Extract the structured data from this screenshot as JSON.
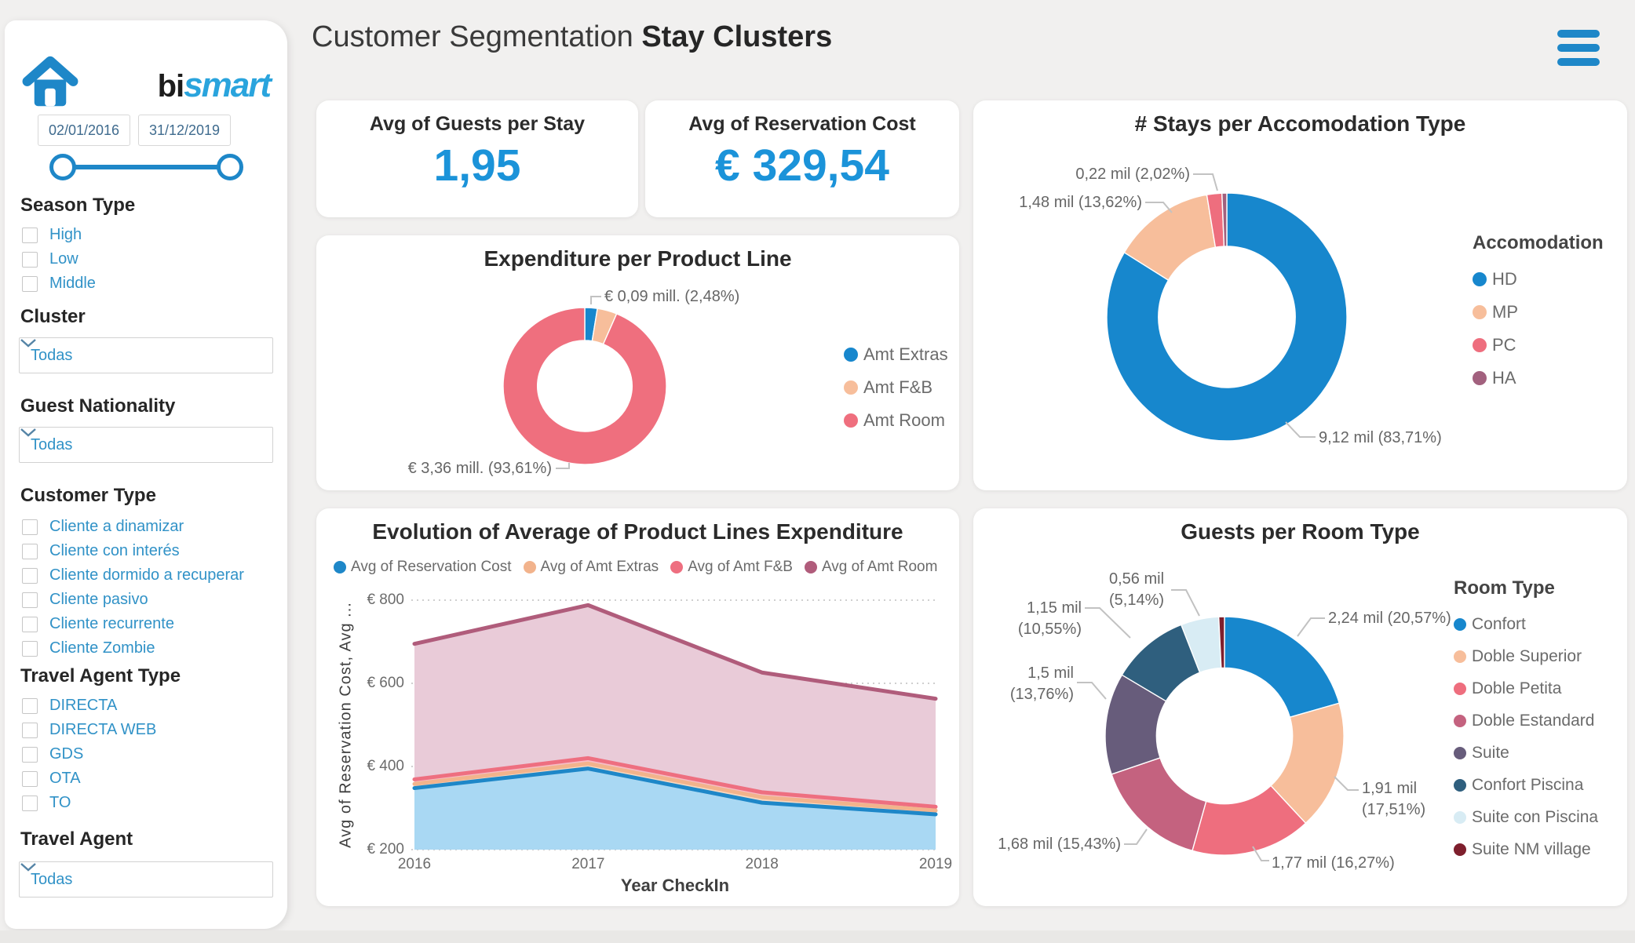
{
  "theme": {
    "accent_blue": "#1E87C8",
    "kpi_blue": "#1B93D9",
    "link_blue": "#3192C7",
    "text_dark": "#2B2B2B",
    "text_gray": "#6B6B6B",
    "leader_gray": "#C2C2C2",
    "page_bg": "#F1F0EF"
  },
  "sidebar": {
    "logo": {
      "bi": "bi",
      "smart": "smart"
    },
    "date_from": "02/01/2016",
    "date_to": "31/12/2019",
    "season_type": {
      "title": "Season Type",
      "options": [
        "High",
        "Low",
        "Middle"
      ]
    },
    "cluster": {
      "title": "Cluster",
      "value": "Todas"
    },
    "guest_nationality": {
      "title": "Guest Nationality",
      "value": "Todas"
    },
    "customer_type": {
      "title": "Customer Type",
      "options": [
        "Cliente a dinamizar",
        "Cliente con interés",
        "Cliente dormido a recuperar",
        "Cliente pasivo",
        "Cliente recurrente",
        "Cliente Zombie"
      ]
    },
    "travel_agent_type": {
      "title": "Travel Agent Type",
      "options": [
        "DIRECTA",
        "DIRECTA WEB",
        "GDS",
        "OTA",
        "TO"
      ]
    },
    "travel_agent": {
      "title": "Travel Agent",
      "value": "Todas"
    }
  },
  "header": {
    "title_regular": "Customer Segmentation",
    "title_bold": "Stay Clusters"
  },
  "kpis": [
    {
      "title": "Avg of Guests per Stay",
      "value": "1,95"
    },
    {
      "title": "Avg of Reservation Cost",
      "value": "€ 329,54"
    }
  ],
  "chart_data": [
    {
      "id": "expenditure",
      "type": "donut",
      "title": "Expenditure per Product Line",
      "legend_position": "right",
      "slices": [
        {
          "label": "Amt Extras",
          "pct": 2.48,
          "color": "#1787CD",
          "callout": "€ 0,09 mill. (2,48%)"
        },
        {
          "label": "Amt F&B",
          "pct": 3.91,
          "color": "#F7BE9B"
        },
        {
          "label": "Amt Room",
          "pct": 93.61,
          "color": "#EF6F7E",
          "callout": "€ 3,36 mill. (93,61%)"
        }
      ]
    },
    {
      "id": "accomodation",
      "type": "donut",
      "title": "# Stays per Accomodation Type",
      "legend_title": "Accomodation",
      "legend_position": "right",
      "slices": [
        {
          "label": "HD",
          "pct": 83.71,
          "color": "#1787CD",
          "callout": "9,12 mil (83,71%)"
        },
        {
          "label": "MP",
          "pct": 13.62,
          "color": "#F7BE9B",
          "callout": "1,48 mil (13,62%)"
        },
        {
          "label": "PC",
          "pct": 2.02,
          "color": "#EE6E7E",
          "callout": "0,22 mil (2,02%)"
        },
        {
          "label": "HA",
          "pct": 0.65,
          "color": "#A2617E"
        }
      ]
    },
    {
      "id": "evolution",
      "type": "area",
      "title": "Evolution of Average of Product Lines Expenditure",
      "xlabel": "Year CheckIn",
      "ylabel": "Avg of Reservation Cost, Avg ...",
      "x": [
        "2016",
        "2017",
        "2018",
        "2019"
      ],
      "ylim": [
        200,
        800
      ],
      "yticks": [
        {
          "value": 200,
          "label": "€ 200"
        },
        {
          "value": 400,
          "label": "€ 400"
        },
        {
          "value": 600,
          "label": "€ 600"
        },
        {
          "value": 800,
          "label": "€ 800"
        }
      ],
      "grid": true,
      "legend_position": "top",
      "series": [
        {
          "name": "Avg of Reservation Cost",
          "values": [
            348,
            395,
            313,
            285
          ],
          "line": "#1E87C8",
          "fill": "#A9D8F3"
        },
        {
          "name": "Avg of Amt Extras",
          "values": [
            358,
            407,
            326,
            294
          ],
          "line": "#F2B38C",
          "fill": "#F9DAC1"
        },
        {
          "name": "Avg of Amt F&B",
          "values": [
            369,
            420,
            338,
            303
          ],
          "line": "#EE6F80",
          "fill": "#F6BDC5"
        },
        {
          "name": "Avg of Amt Room",
          "values": [
            695,
            788,
            626,
            563
          ],
          "line": "#B05C7B",
          "fill": "#E9CBD8"
        }
      ]
    },
    {
      "id": "room_type",
      "type": "donut",
      "title": "Guests per Room Type",
      "legend_title": "Room Type",
      "legend_position": "right",
      "slices": [
        {
          "label": "Confort",
          "pct": 20.57,
          "color": "#1787CD",
          "callout": "2,24 mil (20,57%)"
        },
        {
          "label": "Doble Superior",
          "pct": 17.51,
          "color": "#F7BE9B",
          "callout": "1,91 mil\n(17,51%)"
        },
        {
          "label": "Doble Petita",
          "pct": 16.27,
          "color": "#EE6E7E",
          "callout": "1,77 mil (16,27%)"
        },
        {
          "label": "Doble Estandard",
          "pct": 15.43,
          "color": "#C4627F",
          "callout": "1,68 mil (15,43%)"
        },
        {
          "label": "Suite",
          "pct": 13.76,
          "color": "#675C7B",
          "callout": "1,5 mil\n(13,76%)"
        },
        {
          "label": "Confort Piscina",
          "pct": 10.55,
          "color": "#2F5F7E",
          "callout": "1,15 mil (10,55%)"
        },
        {
          "label": "Suite con Piscina",
          "pct": 5.14,
          "color": "#D8ECF4",
          "callout": "0,56 mil\n(5,14%)"
        },
        {
          "label": "Suite NM village",
          "pct": 0.77,
          "color": "#7E1F2D"
        }
      ]
    }
  ]
}
